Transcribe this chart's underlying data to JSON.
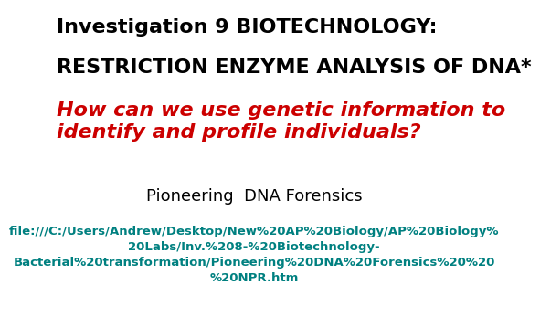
{
  "bg_color": "#ffffff",
  "line1": "Investigation 9 BIOTECHNOLOGY:",
  "line2": "RESTRICTION ENZYME ANALYSIS OF DNA*",
  "line3": "How can we use genetic information to\nidentify and profile individuals?",
  "line4": "Pioneering  DNA Forensics",
  "line5_parts": [
    "file:///C:/Users/Andrew/Desktop/New%20AP%20Biology/AP%20Biology%",
    "20Labs/Inv.%208-%20Biotechnology-",
    "Bacterial%20transformation/Pioneering%20DNA%20Forensics%20%20",
    "%20NPR.htm"
  ],
  "color_black": "#000000",
  "color_red": "#cc0000",
  "color_teal": "#008080",
  "font_size_line1": 16,
  "font_size_line2": 16,
  "font_size_line3": 16,
  "font_size_line4": 13,
  "font_size_line5": 9.5
}
